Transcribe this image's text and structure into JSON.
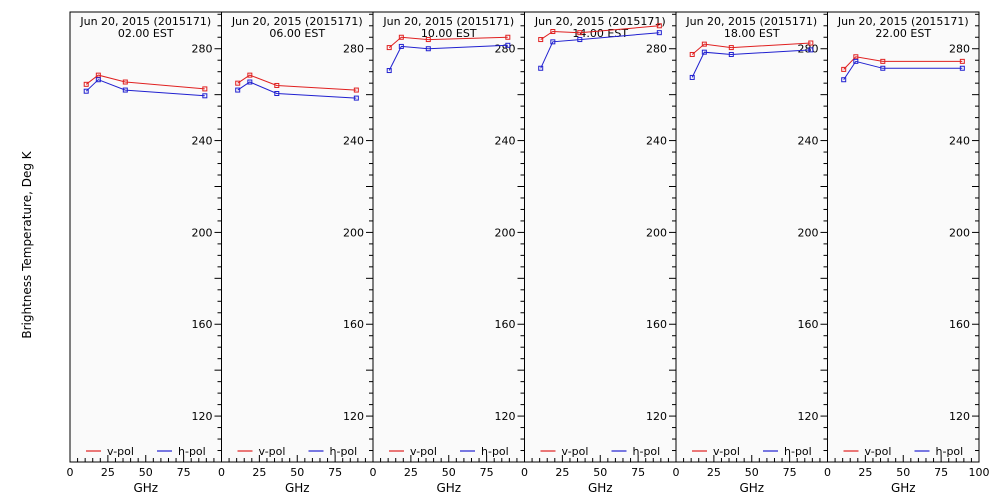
{
  "figure": {
    "ylabel": "Brightness Temperature, Deg K",
    "xlabel": "GHz",
    "colors": {
      "v-pol": "#e02020",
      "h-pol": "#2020d0",
      "background": "#fafafa"
    }
  },
  "chart_data": [
    {
      "type": "line",
      "title": "Jun 20, 2015 (2015171)",
      "subtitle": "02.00 EST",
      "xlabel": "GHz",
      "ylabel": "Brightness Temperature, Deg K",
      "xlim": [
        0,
        100
      ],
      "ylim": [
        100,
        296
      ],
      "xticks": [
        "0",
        "25",
        "50",
        "75"
      ],
      "yticks": [
        "120",
        "160",
        "200",
        "240",
        "280"
      ],
      "grid": false,
      "legend": "bottom",
      "series": [
        {
          "name": "v-pol",
          "x": [
            10.7,
            18.7,
            36.5,
            89.0
          ],
          "y": [
            264.5,
            268.5,
            265.5,
            262.5
          ]
        },
        {
          "name": "h-pol",
          "x": [
            10.7,
            18.7,
            36.5,
            89.0
          ],
          "y": [
            261.5,
            266.5,
            262.0,
            259.5
          ]
        }
      ]
    },
    {
      "type": "line",
      "title": "Jun 20, 2015 (2015171)",
      "subtitle": "06.00 EST",
      "xlabel": "GHz",
      "xlim": [
        0,
        100
      ],
      "ylim": [
        100,
        296
      ],
      "xticks": [
        "0",
        "25",
        "50",
        "75"
      ],
      "yticks": [
        "120",
        "160",
        "200",
        "240",
        "280"
      ],
      "grid": false,
      "legend": "bottom",
      "series": [
        {
          "name": "v-pol",
          "x": [
            10.7,
            18.7,
            36.5,
            89.0
          ],
          "y": [
            265.0,
            268.5,
            264.0,
            262.0
          ]
        },
        {
          "name": "h-pol",
          "x": [
            10.7,
            18.7,
            36.5,
            89.0
          ],
          "y": [
            262.0,
            265.5,
            260.5,
            258.5
          ]
        }
      ]
    },
    {
      "type": "line",
      "title": "Jun 20, 2015 (2015171)",
      "subtitle": "10.00 EST",
      "xlabel": "GHz",
      "xlim": [
        0,
        100
      ],
      "ylim": [
        100,
        296
      ],
      "xticks": [
        "0",
        "25",
        "50",
        "75"
      ],
      "yticks": [
        "120",
        "160",
        "200",
        "240",
        "280"
      ],
      "grid": false,
      "legend": "bottom",
      "series": [
        {
          "name": "v-pol",
          "x": [
            10.7,
            18.7,
            36.5,
            89.0
          ],
          "y": [
            280.5,
            285.0,
            284.0,
            285.0
          ]
        },
        {
          "name": "h-pol",
          "x": [
            10.7,
            18.7,
            36.5,
            89.0
          ],
          "y": [
            270.5,
            281.0,
            280.0,
            281.5
          ]
        }
      ]
    },
    {
      "type": "line",
      "title": "Jun 20, 2015 (2015171)",
      "subtitle": "14.00 EST",
      "xlabel": "GHz",
      "xlim": [
        0,
        100
      ],
      "ylim": [
        100,
        296
      ],
      "xticks": [
        "0",
        "25",
        "50",
        "75"
      ],
      "yticks": [
        "120",
        "160",
        "200",
        "240",
        "280"
      ],
      "grid": false,
      "legend": "bottom",
      "series": [
        {
          "name": "v-pol",
          "x": [
            10.7,
            18.7,
            36.5,
            89.0
          ],
          "y": [
            284.0,
            287.5,
            287.0,
            290.0
          ]
        },
        {
          "name": "h-pol",
          "x": [
            10.7,
            18.7,
            36.5,
            89.0
          ],
          "y": [
            271.5,
            283.0,
            284.0,
            287.0
          ]
        }
      ]
    },
    {
      "type": "line",
      "title": "Jun 20, 2015 (2015171)",
      "subtitle": "18.00 EST",
      "xlabel": "GHz",
      "xlim": [
        0,
        100
      ],
      "ylim": [
        100,
        296
      ],
      "xticks": [
        "0",
        "25",
        "50",
        "75"
      ],
      "yticks": [
        "120",
        "160",
        "200",
        "240",
        "280"
      ],
      "grid": false,
      "legend": "bottom",
      "series": [
        {
          "name": "v-pol",
          "x": [
            10.7,
            18.7,
            36.5,
            89.0
          ],
          "y": [
            277.5,
            282.0,
            280.5,
            282.5
          ]
        },
        {
          "name": "h-pol",
          "x": [
            10.7,
            18.7,
            36.5,
            89.0
          ],
          "y": [
            267.5,
            278.5,
            277.5,
            279.5
          ]
        }
      ]
    },
    {
      "type": "line",
      "title": "Jun 20, 2015 (2015171)",
      "subtitle": "22.00 EST",
      "xlabel": "GHz",
      "xlim": [
        0,
        100
      ],
      "ylim": [
        100,
        296
      ],
      "xticks": [
        "0",
        "25",
        "50",
        "75",
        "100"
      ],
      "yticks": [
        "120",
        "160",
        "200",
        "240",
        "280"
      ],
      "grid": false,
      "legend": "bottom",
      "series": [
        {
          "name": "v-pol",
          "x": [
            10.7,
            18.7,
            36.5,
            89.0
          ],
          "y": [
            271.0,
            276.5,
            274.5,
            274.5
          ]
        },
        {
          "name": "h-pol",
          "x": [
            10.7,
            18.7,
            36.5,
            89.0
          ],
          "y": [
            266.5,
            274.5,
            271.5,
            271.5
          ]
        }
      ]
    }
  ]
}
